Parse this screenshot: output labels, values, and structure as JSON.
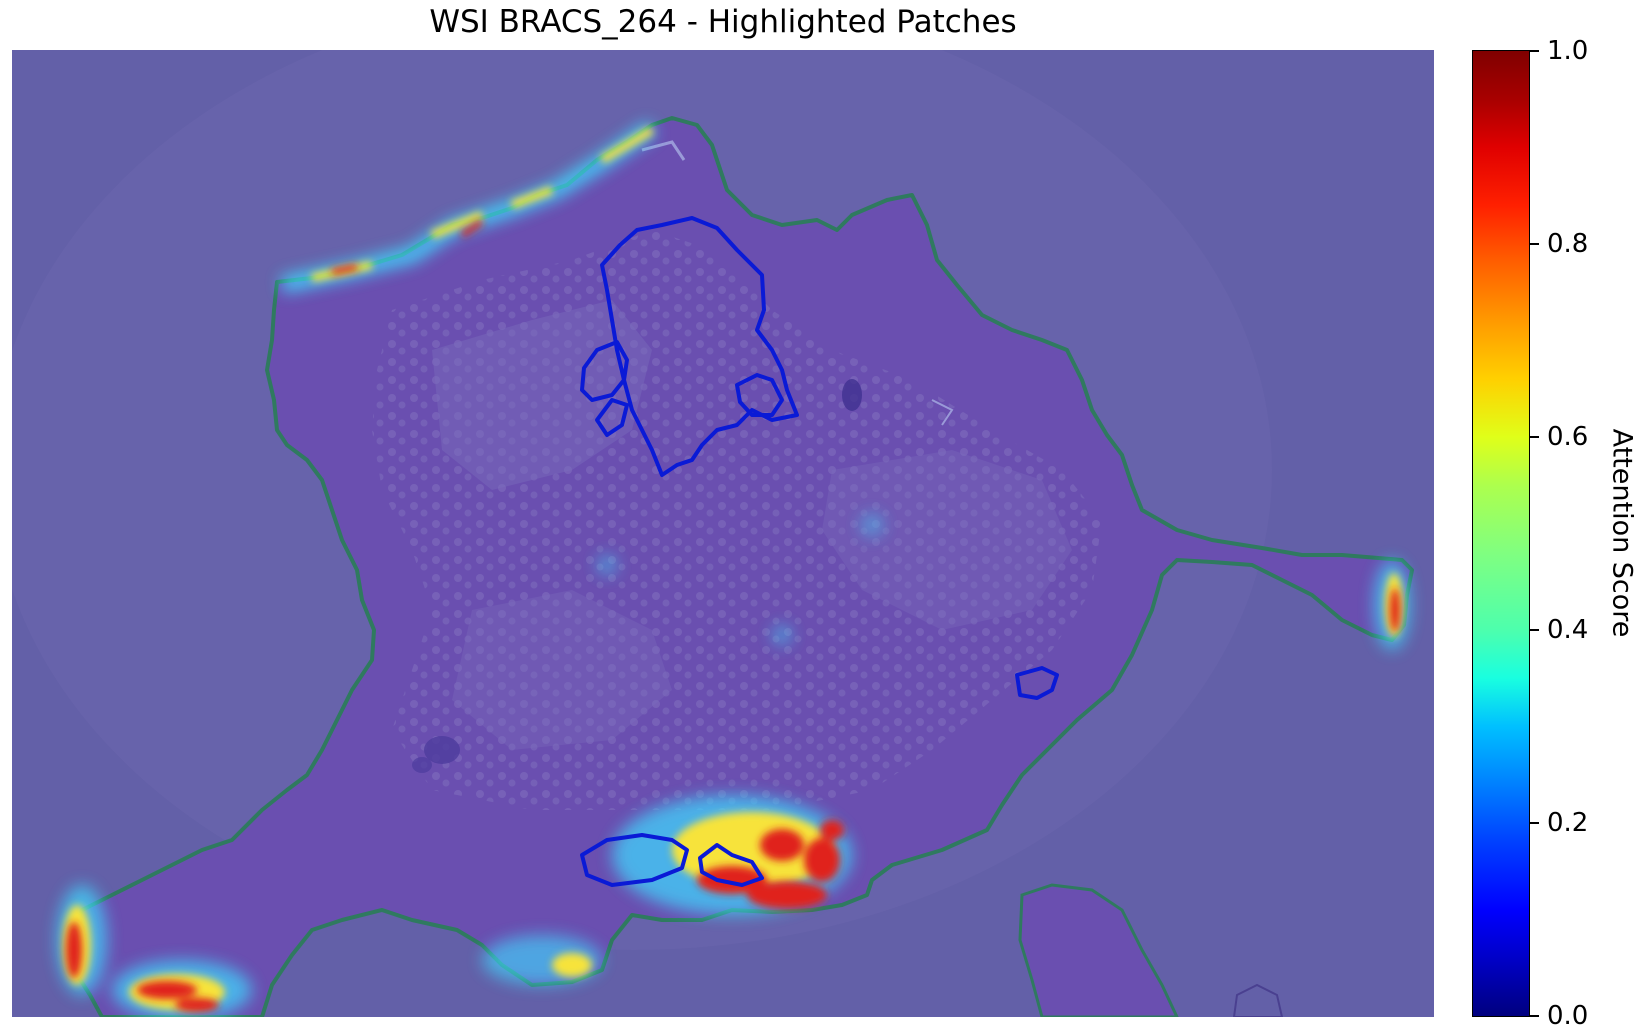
{
  "title": "WSI BRACS_264 - Highlighted Patches",
  "colorbar": {
    "label": "Attention Score",
    "colormap": "jet",
    "range": [
      0.0,
      1.0
    ],
    "ticks": [
      "0.0",
      "0.2",
      "0.4",
      "0.6",
      "0.8",
      "1.0"
    ]
  },
  "colors": {
    "background_overlay": "#6360a8",
    "tissue": "#6a4fb0",
    "tissue_contour": "#2f7a5f",
    "annotation_contour": "#0a1ad6",
    "hot": "#e0201a",
    "warm": "#f7e33a",
    "cool": "#3fd9ff"
  }
}
